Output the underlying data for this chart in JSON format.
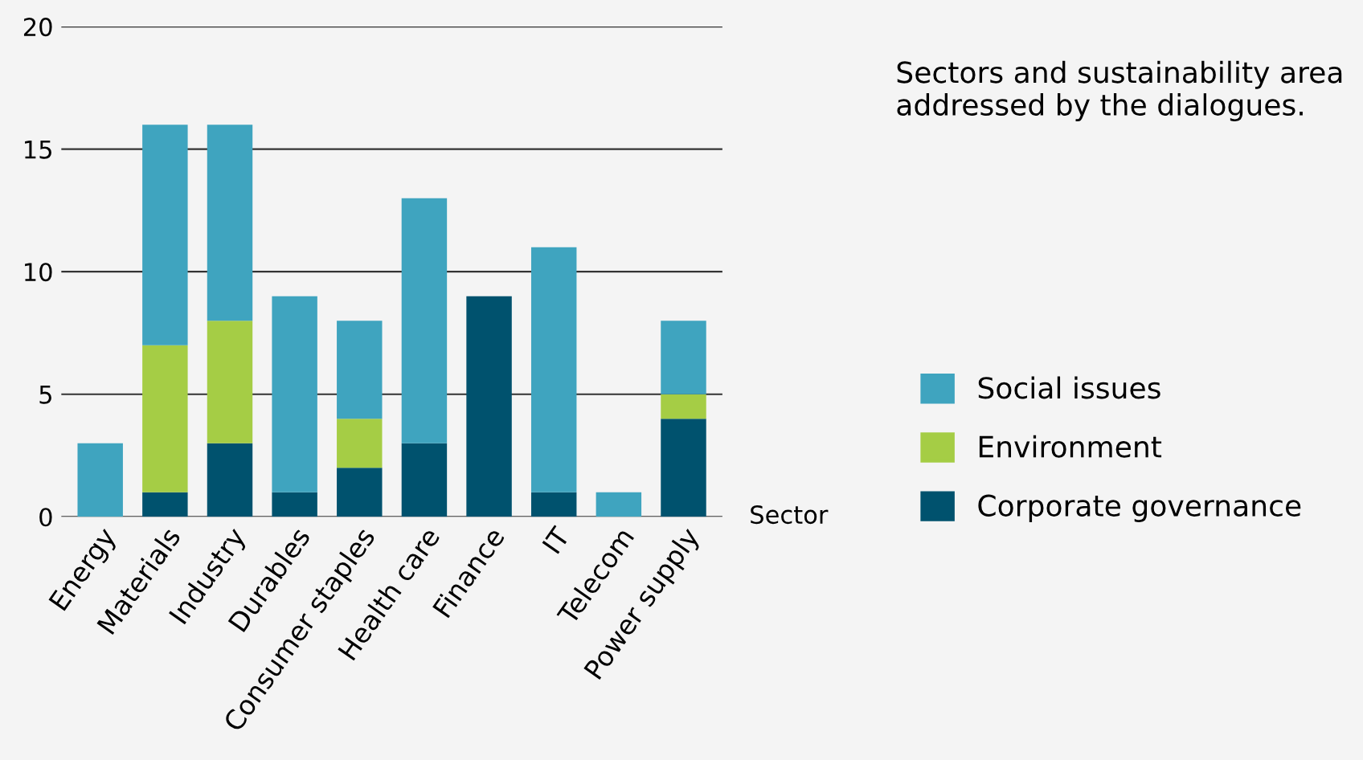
{
  "chart_data": {
    "type": "bar",
    "stacked": true,
    "title": "Sectors and sustainability area addressed by the dialogues.",
    "xlabel": "Sector",
    "categories": [
      "Energy",
      "Materials",
      "Industry",
      "Durables",
      "Consumer staples",
      "Health care",
      "Finance",
      "IT",
      "Telecom",
      "Power supply"
    ],
    "series": [
      {
        "name": "Corporate governance",
        "color": "#00526e",
        "values": [
          0,
          1,
          3,
          1,
          2,
          3,
          9,
          1,
          0,
          4
        ]
      },
      {
        "name": "Environment",
        "color": "#a5cd45",
        "values": [
          0,
          6,
          5,
          0,
          2,
          0,
          0,
          0,
          0,
          1
        ]
      },
      {
        "name": "Social issues",
        "color": "#3fa4bf",
        "values": [
          3,
          9,
          8,
          8,
          4,
          10,
          0,
          10,
          1,
          3
        ]
      }
    ],
    "ylim": [
      0,
      20
    ],
    "yticks": [
      0,
      5,
      10,
      15,
      20
    ],
    "grid": "y",
    "legend": "right"
  }
}
